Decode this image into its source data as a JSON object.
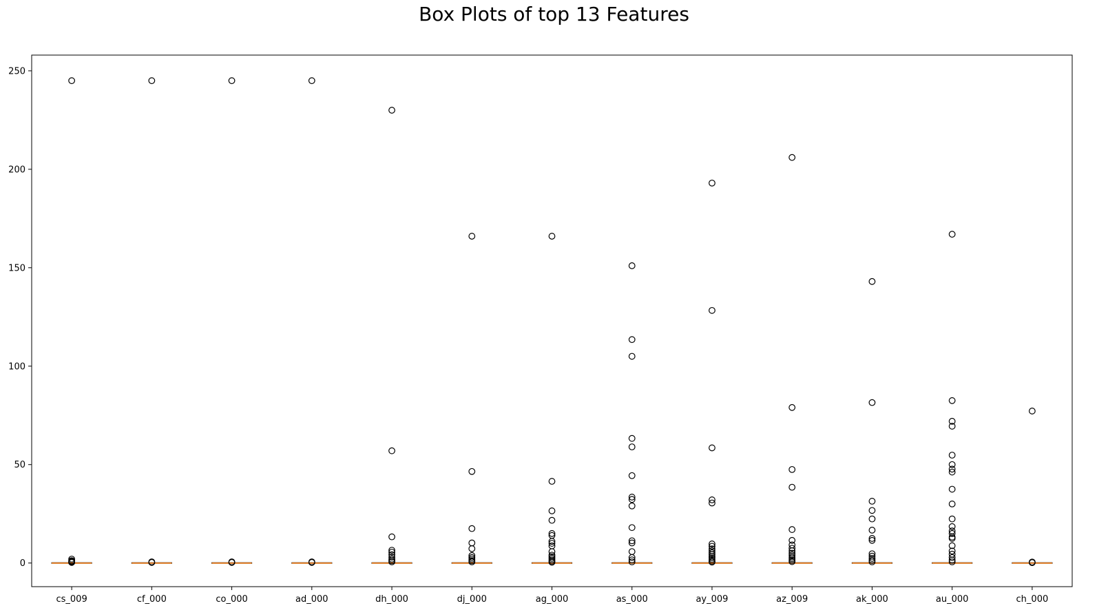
{
  "chart_data": {
    "type": "box",
    "title": "Box Plots of top 13 Features",
    "xlabel": "",
    "ylabel": "",
    "ylim": [
      -12,
      258
    ],
    "yticks": [
      0,
      50,
      100,
      150,
      200,
      250
    ],
    "grid": false,
    "colors": {
      "median": "#ff7f0e",
      "box": "#000000",
      "outlier_edge": "#000000"
    },
    "categories": [
      "cs_009",
      "cf_000",
      "co_000",
      "ad_000",
      "dh_000",
      "dj_000",
      "ag_000",
      "as_000",
      "ay_009",
      "az_009",
      "ak_000",
      "au_000",
      "ch_000"
    ],
    "boxes": [
      {
        "label": "cs_009",
        "q1": 0,
        "median": 0,
        "q3": 0,
        "whisker_low": 0,
        "whisker_high": 0,
        "outliers": [
          245,
          2,
          1.2,
          0.8,
          0.5,
          0.3
        ]
      },
      {
        "label": "cf_000",
        "q1": 0,
        "median": 0,
        "q3": 0,
        "whisker_low": 0,
        "whisker_high": 0,
        "outliers": [
          245,
          0.6,
          0.3
        ]
      },
      {
        "label": "co_000",
        "q1": 0,
        "median": 0,
        "q3": 0,
        "whisker_low": 0,
        "whisker_high": 0,
        "outliers": [
          245,
          0.6,
          0.3
        ]
      },
      {
        "label": "ad_000",
        "q1": 0,
        "median": 0,
        "q3": 0,
        "whisker_low": 0,
        "whisker_high": 0,
        "outliers": [
          245,
          0.6,
          0.3
        ]
      },
      {
        "label": "dh_000",
        "q1": 0,
        "median": 0,
        "q3": 0,
        "whisker_low": 0,
        "whisker_high": 0,
        "outliers": [
          230,
          57,
          13.3,
          6.5,
          5.5,
          4.2,
          3,
          2,
          1.2,
          0.6
        ]
      },
      {
        "label": "dj_000",
        "q1": 0,
        "median": 0,
        "q3": 0,
        "whisker_low": 0,
        "whisker_high": 0,
        "outliers": [
          166,
          46.5,
          17.5,
          10.2,
          7.3,
          3.8,
          2.8,
          2,
          1.2,
          0.6
        ]
      },
      {
        "label": "ag_000",
        "q1": 0,
        "median": 0,
        "q3": 0,
        "whisker_low": 0,
        "whisker_high": 0,
        "outliers": [
          166,
          41.5,
          26.5,
          21.7,
          15,
          14,
          11,
          10,
          8.7,
          5.8,
          4,
          3.2,
          2.4,
          1.6,
          0.9,
          0.4
        ]
      },
      {
        "label": "as_000",
        "q1": 0,
        "median": 0,
        "q3": 0,
        "whisker_low": 0,
        "whisker_high": 0,
        "outliers": [
          151,
          113.5,
          105,
          63.3,
          59,
          44.4,
          33.5,
          32.3,
          29,
          18,
          11.3,
          10.2,
          5.8,
          2.8,
          1.6,
          0.6
        ]
      },
      {
        "label": "ay_009",
        "q1": 0,
        "median": 0,
        "q3": 0,
        "whisker_low": 0,
        "whisker_high": 0,
        "outliers": [
          193,
          128.3,
          58.5,
          32.1,
          30.5,
          9.7,
          8.5,
          7.2,
          6.2,
          5.2,
          4.3,
          3.4,
          2.6,
          1.8,
          1,
          0.5
        ]
      },
      {
        "label": "az_009",
        "q1": 0,
        "median": 0,
        "q3": 0,
        "whisker_low": 0,
        "whisker_high": 0,
        "outliers": [
          206,
          79,
          47.5,
          38.5,
          17,
          11.5,
          9.2,
          7.5,
          6.2,
          5,
          4,
          3,
          2.2,
          1.4,
          0.7
        ]
      },
      {
        "label": "ak_000",
        "q1": 0,
        "median": 0,
        "q3": 0,
        "whisker_low": 0,
        "whisker_high": 0,
        "outliers": [
          143,
          81.5,
          31.4,
          26.7,
          22.4,
          16.7,
          12.5,
          11.5,
          4.7,
          3.5,
          2.4,
          1.4,
          0.6
        ]
      },
      {
        "label": "au_000",
        "q1": 0,
        "median": 0,
        "q3": 0,
        "whisker_low": 0,
        "whisker_high": 0,
        "outliers": [
          167,
          82.5,
          72,
          69.5,
          54.8,
          50,
          47.7,
          46.2,
          37.5,
          30,
          22.4,
          18.5,
          16.3,
          15,
          13.2,
          12.5,
          8.8,
          6.1,
          4.5,
          2.8,
          1.5,
          0.6
        ]
      },
      {
        "label": "ch_000",
        "q1": 0,
        "median": 0,
        "q3": 0,
        "whisker_low": 0,
        "whisker_high": 0,
        "outliers": [
          77.2,
          0.5,
          0.2
        ]
      }
    ]
  }
}
